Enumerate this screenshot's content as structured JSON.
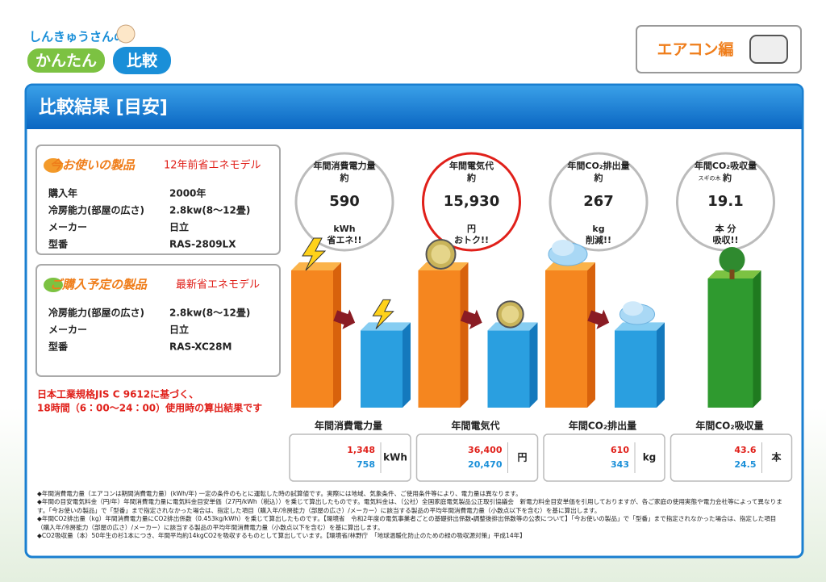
{
  "logo": {
    "top": "しんきゅうさんの",
    "main": "かんたん",
    "accent": "比較"
  },
  "badge": "エアコン編",
  "title": "比較結果 [目安]",
  "products": [
    {
      "label": "今お使いの製品",
      "model_note": "12年前省エネモデル",
      "rows": [
        [
          "購入年",
          "2000年"
        ],
        [
          "冷房能力(部屋の広さ)",
          "2.8kw(8〜12畳)"
        ],
        [
          "メーカー",
          "日立"
        ],
        [
          "型番",
          "RAS-2809LX"
        ]
      ]
    },
    {
      "label": "ご購入予定の製品",
      "model_note": "最新省エネモデル",
      "rows": [
        [
          "冷房能力(部屋の広さ)",
          "2.8kw(8〜12畳)"
        ],
        [
          "メーカー",
          "日立"
        ],
        [
          "型番",
          "RAS-XC28M"
        ]
      ]
    }
  ],
  "note": [
    "日本工業規格JIS C 9612に基づく、",
    "18時間（6：00〜24：00）使用時の算出結果です"
  ],
  "metrics": [
    {
      "heading": "年間消費電力量",
      "approx": "約",
      "value": "590",
      "unit": "kWh",
      "result": "省エネ!!",
      "caption": "年間消費電力量",
      "old": "1,348",
      "new": "758",
      "box_unit": "kWh"
    },
    {
      "heading": "年間電気代",
      "approx": "約",
      "value": "15,930",
      "unit": "円",
      "result": "おトク!!",
      "caption": "年間電気代",
      "old": "36,400",
      "new": "20,470",
      "box_unit": "円"
    },
    {
      "heading": "年間CO₂排出量",
      "approx": "約",
      "value": "267",
      "unit": "kg",
      "result": "削減!!",
      "caption": "年間CO₂排出量",
      "old": "610",
      "new": "343",
      "box_unit": "kg"
    },
    {
      "heading": "年間CO₂吸収量",
      "prefix": "スギの木",
      "approx": "約",
      "value": "19.1",
      "unit": "本 分",
      "result": "吸収!!",
      "caption": "年間CO₂吸収量",
      "old": "43.6",
      "new": "24.5",
      "box_unit": "本"
    }
  ],
  "footnotes": [
    "◆年間消費電力量（エアコンは期間消費電力量）(kWh/年) 一定の条件のもとに運転した時の試算値です。実際には地域、気象条件、ご使用条件等により、電力量は異なります。",
    "◆年間の目安電気料金（円/年）年間消費電力量に電気料金目安単価（27円/kWh（税込））を乗じて算出したものです。電気料金は、（公社）全国家庭電気製品公正取引協議会　新電力料金目安単価を引用しておりますが、各ご家庭の使用実態や電力会社等によって異なります。「今お使いの製品」で「型番」まで指定されなかった場合は、指定した項目（購入年/冷房能力（部屋の広さ）/メーカー）に該当する製品の平均年間消費電力量（小数点以下を含む）を基に算出します。",
    "◆年間CO2排出量（kg）年間消費電力量にCO2排出係数（0.453kg/kWh）を乗じて算出したものです。【環境省　令和2年度の電気事業者ごとの基礎排出係数・調整後排出係数等の公表について】「今お使いの製品」で「型番」まで指定されなかった場合は、指定した項目（購入年/冷房能力（部屋の広さ）/メーカー）に該当する製品の平均年間消費電力量（小数点以下を含む）を基に算出します。",
    "◆CO2吸収量（本）50年生の杉1本につき、年間平均約14kgCO2を吸収するものとして算出しています。【環境省/林野庁　「地球温暖化防止のための緑の吸収源対策」平成14年】"
  ]
}
